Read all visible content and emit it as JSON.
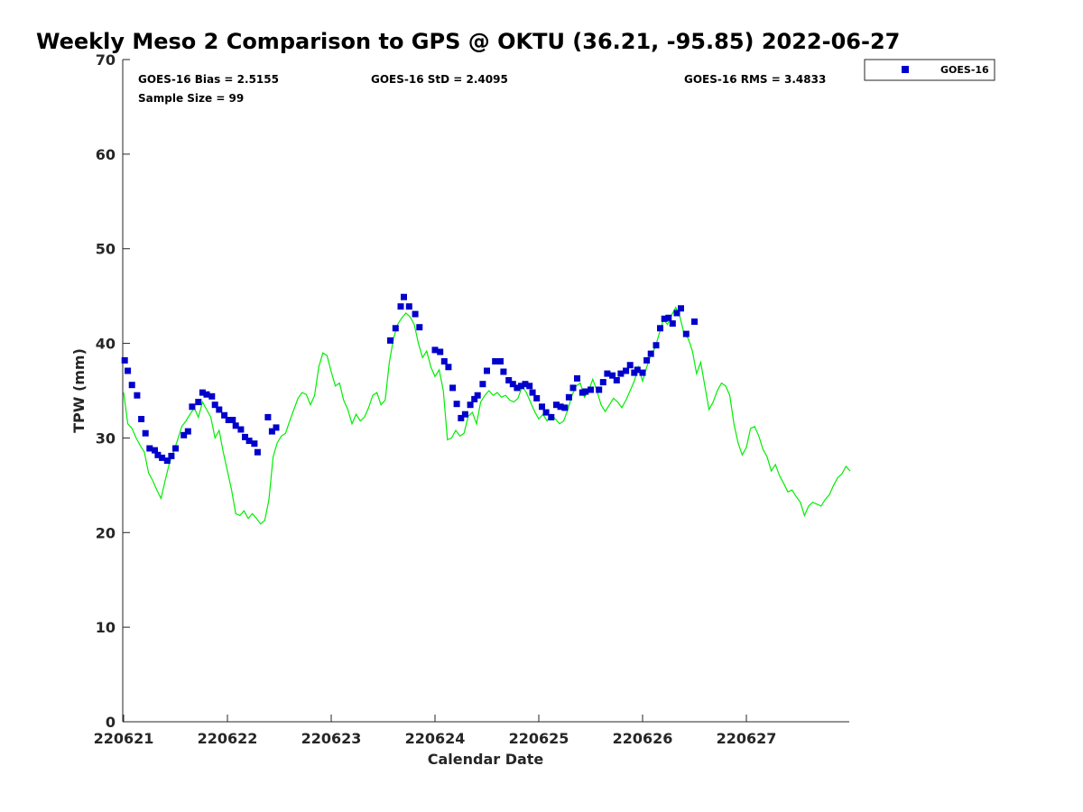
{
  "chart_data": {
    "type": "scatter",
    "title": "Weekly Meso 2 Comparison to GPS @ OKTU (36.21, -95.85) 2022-06-27",
    "xlabel": "Calendar Date",
    "ylabel": "TPW (mm)",
    "xlim": [
      220621,
      220628
    ],
    "ylim": [
      0,
      70
    ],
    "x_ticks": [
      "220621",
      "220622",
      "220623",
      "220624",
      "220625",
      "220626",
      "220627"
    ],
    "y_ticks": [
      "0",
      "10",
      "20",
      "30",
      "40",
      "50",
      "60",
      "70"
    ],
    "grid": false,
    "legend_position": "outside-top-right",
    "stats": {
      "bias": "GOES-16 Bias = 2.5155",
      "std": "GOES-16 StD = 2.4095",
      "rms": "GOES-16 RMS = 3.4833",
      "sample_size": "Sample Size = 99"
    },
    "series": [
      {
        "name": "GOES-16",
        "kind": "scatter",
        "color": "#0000cc",
        "points": [
          [
            0.01,
            38.2
          ],
          [
            0.04,
            37.1
          ],
          [
            0.08,
            35.6
          ],
          [
            0.13,
            34.5
          ],
          [
            0.17,
            32.0
          ],
          [
            0.21,
            30.5
          ],
          [
            0.25,
            28.9
          ],
          [
            0.3,
            28.7
          ],
          [
            0.33,
            28.2
          ],
          [
            0.37,
            27.9
          ],
          [
            0.42,
            27.6
          ],
          [
            0.46,
            28.1
          ],
          [
            0.5,
            28.9
          ],
          [
            0.58,
            30.3
          ],
          [
            0.62,
            30.7
          ],
          [
            0.66,
            33.3
          ],
          [
            0.72,
            33.8
          ],
          [
            0.76,
            34.8
          ],
          [
            0.8,
            34.6
          ],
          [
            0.85,
            34.4
          ],
          [
            0.88,
            33.5
          ],
          [
            0.92,
            33.0
          ],
          [
            0.97,
            32.4
          ],
          [
            1.01,
            31.9
          ],
          [
            1.05,
            31.9
          ],
          [
            1.08,
            31.3
          ],
          [
            1.13,
            30.9
          ],
          [
            1.17,
            30.1
          ],
          [
            1.21,
            29.7
          ],
          [
            1.26,
            29.4
          ],
          [
            1.29,
            28.5
          ],
          [
            1.39,
            32.2
          ],
          [
            1.43,
            30.7
          ],
          [
            1.47,
            31.1
          ],
          [
            2.57,
            40.3
          ],
          [
            2.62,
            41.6
          ],
          [
            2.67,
            43.9
          ],
          [
            2.7,
            44.9
          ],
          [
            2.75,
            43.9
          ],
          [
            2.81,
            43.1
          ],
          [
            2.85,
            41.7
          ],
          [
            3.0,
            39.3
          ],
          [
            3.05,
            39.1
          ],
          [
            3.09,
            38.1
          ],
          [
            3.13,
            37.5
          ],
          [
            3.17,
            35.3
          ],
          [
            3.21,
            33.6
          ],
          [
            3.25,
            32.1
          ],
          [
            3.29,
            32.5
          ],
          [
            3.34,
            33.5
          ],
          [
            3.38,
            34.1
          ],
          [
            3.41,
            34.5
          ],
          [
            3.46,
            35.7
          ],
          [
            3.5,
            37.1
          ],
          [
            3.58,
            38.1
          ],
          [
            3.63,
            38.1
          ],
          [
            3.66,
            37.0
          ],
          [
            3.71,
            36.1
          ],
          [
            3.75,
            35.7
          ],
          [
            3.79,
            35.3
          ],
          [
            3.83,
            35.5
          ],
          [
            3.87,
            35.7
          ],
          [
            3.91,
            35.5
          ],
          [
            3.94,
            34.8
          ],
          [
            3.98,
            34.2
          ],
          [
            4.03,
            33.3
          ],
          [
            4.07,
            32.7
          ],
          [
            4.12,
            32.2
          ],
          [
            4.17,
            33.5
          ],
          [
            4.21,
            33.3
          ],
          [
            4.25,
            33.2
          ],
          [
            4.29,
            34.3
          ],
          [
            4.33,
            35.3
          ],
          [
            4.37,
            36.3
          ],
          [
            4.42,
            34.8
          ],
          [
            4.45,
            34.9
          ],
          [
            4.5,
            35.1
          ],
          [
            4.58,
            35.1
          ],
          [
            4.62,
            35.9
          ],
          [
            4.66,
            36.8
          ],
          [
            4.71,
            36.6
          ],
          [
            4.75,
            36.1
          ],
          [
            4.79,
            36.8
          ],
          [
            4.84,
            37.1
          ],
          [
            4.88,
            37.7
          ],
          [
            4.92,
            36.9
          ],
          [
            4.95,
            37.2
          ],
          [
            5.0,
            36.9
          ],
          [
            5.04,
            38.2
          ],
          [
            5.08,
            38.9
          ],
          [
            5.13,
            39.8
          ],
          [
            5.17,
            41.6
          ],
          [
            5.21,
            42.6
          ],
          [
            5.25,
            42.7
          ],
          [
            5.29,
            42.1
          ],
          [
            5.33,
            43.2
          ],
          [
            5.37,
            43.7
          ],
          [
            5.42,
            41.0
          ],
          [
            5.5,
            42.3
          ]
        ]
      },
      {
        "kind": "line",
        "color": "#00ee00",
        "points": [
          [
            0.0,
            34.8
          ],
          [
            0.04,
            31.5
          ],
          [
            0.08,
            31.0
          ],
          [
            0.12,
            30.0
          ],
          [
            0.16,
            29.2
          ],
          [
            0.2,
            28.5
          ],
          [
            0.24,
            26.3
          ],
          [
            0.28,
            25.5
          ],
          [
            0.32,
            24.5
          ],
          [
            0.36,
            23.6
          ],
          [
            0.4,
            25.5
          ],
          [
            0.44,
            27.3
          ],
          [
            0.48,
            28.5
          ],
          [
            0.52,
            29.8
          ],
          [
            0.56,
            31.2
          ],
          [
            0.6,
            31.8
          ],
          [
            0.64,
            32.5
          ],
          [
            0.68,
            33.2
          ],
          [
            0.72,
            32.2
          ],
          [
            0.76,
            33.8
          ],
          [
            0.8,
            33.0
          ],
          [
            0.84,
            32.2
          ],
          [
            0.88,
            30.0
          ],
          [
            0.92,
            30.8
          ],
          [
            0.96,
            28.5
          ],
          [
            1.0,
            26.5
          ],
          [
            1.04,
            24.5
          ],
          [
            1.08,
            22.0
          ],
          [
            1.12,
            21.8
          ],
          [
            1.16,
            22.3
          ],
          [
            1.2,
            21.5
          ],
          [
            1.24,
            22.0
          ],
          [
            1.28,
            21.5
          ],
          [
            1.32,
            20.9
          ],
          [
            1.36,
            21.3
          ],
          [
            1.4,
            23.5
          ],
          [
            1.44,
            28.0
          ],
          [
            1.48,
            29.5
          ],
          [
            1.52,
            30.2
          ],
          [
            1.56,
            30.5
          ],
          [
            1.6,
            31.8
          ],
          [
            1.64,
            33.0
          ],
          [
            1.68,
            34.2
          ],
          [
            1.72,
            34.8
          ],
          [
            1.76,
            34.6
          ],
          [
            1.8,
            33.5
          ],
          [
            1.84,
            34.5
          ],
          [
            1.88,
            37.5
          ],
          [
            1.92,
            39.0
          ],
          [
            1.96,
            38.7
          ],
          [
            2.0,
            37.0
          ],
          [
            2.04,
            35.5
          ],
          [
            2.08,
            35.8
          ],
          [
            2.12,
            34.0
          ],
          [
            2.16,
            33.0
          ],
          [
            2.2,
            31.5
          ],
          [
            2.24,
            32.5
          ],
          [
            2.28,
            31.8
          ],
          [
            2.32,
            32.2
          ],
          [
            2.36,
            33.2
          ],
          [
            2.4,
            34.5
          ],
          [
            2.44,
            34.8
          ],
          [
            2.48,
            33.5
          ],
          [
            2.52,
            34.0
          ],
          [
            2.56,
            38.0
          ],
          [
            2.6,
            40.5
          ],
          [
            2.64,
            42.0
          ],
          [
            2.68,
            42.7
          ],
          [
            2.72,
            43.2
          ],
          [
            2.76,
            42.8
          ],
          [
            2.8,
            42.0
          ],
          [
            2.84,
            40.0
          ],
          [
            2.88,
            38.5
          ],
          [
            2.92,
            39.2
          ],
          [
            2.96,
            37.5
          ],
          [
            3.0,
            36.5
          ],
          [
            3.04,
            37.2
          ],
          [
            3.08,
            35.0
          ],
          [
            3.12,
            29.8
          ],
          [
            3.16,
            30.0
          ],
          [
            3.2,
            30.8
          ],
          [
            3.24,
            30.2
          ],
          [
            3.28,
            30.5
          ],
          [
            3.32,
            32.3
          ],
          [
            3.36,
            32.7
          ],
          [
            3.4,
            31.5
          ],
          [
            3.44,
            33.8
          ],
          [
            3.48,
            34.5
          ],
          [
            3.52,
            35.0
          ],
          [
            3.56,
            34.5
          ],
          [
            3.6,
            34.8
          ],
          [
            3.64,
            34.3
          ],
          [
            3.68,
            34.5
          ],
          [
            3.72,
            34.0
          ],
          [
            3.76,
            33.8
          ],
          [
            3.8,
            34.2
          ],
          [
            3.84,
            35.5
          ],
          [
            3.88,
            34.8
          ],
          [
            3.92,
            33.8
          ],
          [
            3.96,
            32.8
          ],
          [
            4.0,
            32.0
          ],
          [
            4.04,
            32.5
          ],
          [
            4.08,
            31.8
          ],
          [
            4.12,
            32.5
          ],
          [
            4.16,
            32.0
          ],
          [
            4.2,
            31.5
          ],
          [
            4.24,
            31.8
          ],
          [
            4.28,
            33.0
          ],
          [
            4.32,
            34.5
          ],
          [
            4.36,
            35.5
          ],
          [
            4.4,
            35.8
          ],
          [
            4.44,
            34.3
          ],
          [
            4.48,
            35.0
          ],
          [
            4.52,
            36.2
          ],
          [
            4.56,
            35.0
          ],
          [
            4.6,
            33.5
          ],
          [
            4.64,
            32.8
          ],
          [
            4.68,
            33.5
          ],
          [
            4.72,
            34.2
          ],
          [
            4.76,
            33.8
          ],
          [
            4.8,
            33.2
          ],
          [
            4.84,
            34.0
          ],
          [
            4.88,
            35.0
          ],
          [
            4.92,
            36.0
          ],
          [
            4.96,
            37.5
          ],
          [
            5.0,
            36.0
          ],
          [
            5.04,
            37.5
          ],
          [
            5.08,
            38.8
          ],
          [
            5.12,
            39.5
          ],
          [
            5.16,
            41.0
          ],
          [
            5.2,
            42.5
          ],
          [
            5.24,
            42.0
          ],
          [
            5.28,
            43.0
          ],
          [
            5.32,
            43.8
          ],
          [
            5.36,
            42.8
          ],
          [
            5.4,
            41.0
          ],
          [
            5.44,
            40.5
          ],
          [
            5.48,
            39.2
          ],
          [
            5.52,
            36.8
          ],
          [
            5.56,
            38.0
          ],
          [
            5.6,
            35.5
          ],
          [
            5.64,
            33.0
          ],
          [
            5.68,
            33.8
          ],
          [
            5.72,
            35.0
          ],
          [
            5.76,
            35.8
          ],
          [
            5.8,
            35.5
          ],
          [
            5.84,
            34.5
          ],
          [
            5.88,
            31.5
          ],
          [
            5.92,
            29.5
          ],
          [
            5.96,
            28.2
          ],
          [
            6.0,
            29.0
          ],
          [
            6.04,
            31.0
          ],
          [
            6.08,
            31.2
          ],
          [
            6.12,
            30.2
          ],
          [
            6.16,
            28.8
          ],
          [
            6.2,
            28.0
          ],
          [
            6.24,
            26.5
          ],
          [
            6.28,
            27.2
          ],
          [
            6.32,
            26.0
          ],
          [
            6.36,
            25.2
          ],
          [
            6.4,
            24.3
          ],
          [
            6.44,
            24.5
          ],
          [
            6.48,
            23.8
          ],
          [
            6.52,
            23.2
          ],
          [
            6.56,
            21.8
          ],
          [
            6.6,
            22.8
          ],
          [
            6.64,
            23.2
          ],
          [
            6.68,
            23.0
          ],
          [
            6.72,
            22.8
          ],
          [
            6.76,
            23.5
          ],
          [
            6.8,
            24.0
          ],
          [
            6.84,
            25.0
          ],
          [
            6.88,
            25.8
          ],
          [
            6.92,
            26.2
          ],
          [
            6.96,
            27.0
          ],
          [
            7.0,
            26.5
          ]
        ]
      }
    ]
  }
}
